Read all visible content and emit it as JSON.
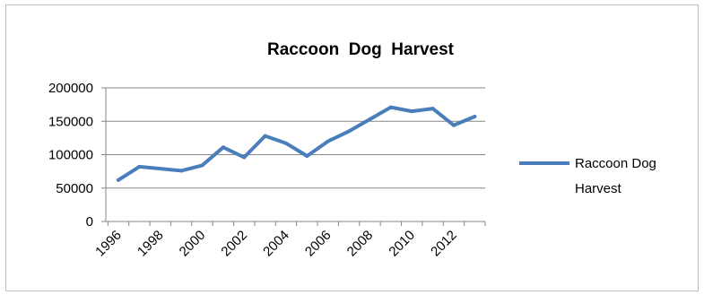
{
  "chart_data": {
    "type": "line",
    "title": "Raccoon  Dog  Harvest",
    "xlabel": "",
    "ylabel": "",
    "x": [
      1996,
      1997,
      1998,
      1999,
      2000,
      2001,
      2002,
      2003,
      2004,
      2005,
      2006,
      2007,
      2008,
      2009,
      2010,
      2011,
      2012,
      2013
    ],
    "x_tick_labels": [
      "1996",
      "1998",
      "2000",
      "2002",
      "2004",
      "2006",
      "2008",
      "2010",
      "2012"
    ],
    "y_tick_labels": [
      "0",
      "50000",
      "100000",
      "150000",
      "200000"
    ],
    "ylim": [
      0,
      200000
    ],
    "grid": true,
    "legend": "right",
    "series": [
      {
        "name": "Raccoon Dog Harvest",
        "legend_lines": [
          "Raccoon Dog",
          "Harvest"
        ],
        "color": "#4a7ebb",
        "values": [
          62000,
          82000,
          79000,
          76000,
          84000,
          111000,
          96000,
          128000,
          117000,
          98000,
          120000,
          135000,
          153000,
          171000,
          165000,
          169000,
          144000,
          157000
        ]
      }
    ]
  }
}
